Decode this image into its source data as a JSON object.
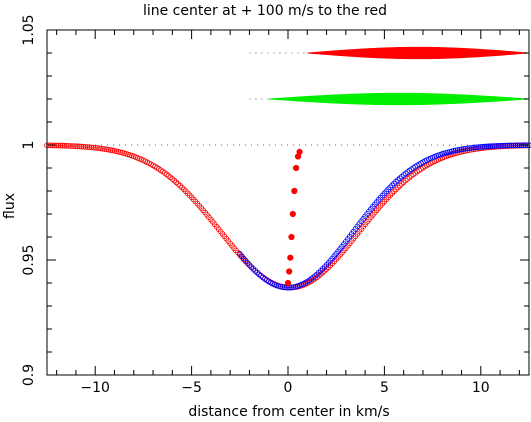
{
  "chart_data": {
    "type": "scatter",
    "title": "line center at + 100 m/s to the red",
    "xlabel": "distance from center in km/s",
    "ylabel": "flux",
    "xlim": [
      -12.5,
      12.5
    ],
    "ylim": [
      0.9,
      1.05
    ],
    "x_ticks": [
      -10,
      -5,
      0,
      5,
      10
    ],
    "x_tick_labels": [
      "−10",
      "−5",
      "0",
      "5",
      "10"
    ],
    "y_ticks": [
      0.9,
      0.95,
      1,
      1.05
    ],
    "y_tick_labels": [
      "0.9",
      "0.95",
      "1",
      "1.05"
    ],
    "continuum_level": 1.0,
    "colors": {
      "red": "#ff0000",
      "blue": "#0000ff",
      "green": "#00ee00",
      "dotted": "#666666"
    },
    "series": [
      {
        "color": "red",
        "marker": "open-circle",
        "model": "inverted gaussian",
        "center": 0.1,
        "depth": 0.062,
        "sigma": 3.6,
        "x_range": [
          -12.5,
          12.5
        ],
        "x_step": 0.1
      },
      {
        "color": "blue",
        "marker": "open-circle",
        "model": "inverted gaussian",
        "center": 0.0,
        "depth": 0.062,
        "sigma": 3.4,
        "x_range": [
          -2.5,
          12.5
        ],
        "x_step": 0.1
      },
      {
        "color": "red",
        "marker": "filled-dot",
        "note": "line bisector",
        "x": [
          0.0,
          0.06,
          0.12,
          0.18,
          0.25,
          0.33,
          0.42,
          0.52,
          0.6
        ],
        "y": [
          0.94,
          0.945,
          0.951,
          0.96,
          0.97,
          0.98,
          0.99,
          0.995,
          0.997
        ]
      }
    ],
    "reference_lines": [
      {
        "y": 1.0,
        "x_range": [
          -12.5,
          12.5
        ],
        "color": "dotted"
      },
      {
        "y": 1.02,
        "x_range": [
          -2.0,
          2.5
        ],
        "color": "dotted"
      },
      {
        "y": 1.04,
        "x_range": [
          -2.0,
          1.5
        ],
        "color": "dotted"
      }
    ],
    "difference_bands": [
      {
        "color": "green",
        "y": 1.02,
        "x_range": [
          -1.0,
          12.5
        ],
        "max_width": 0.0025
      },
      {
        "color": "red",
        "y": 1.04,
        "x_range": [
          1.0,
          12.5
        ],
        "max_width": 0.0025
      }
    ]
  }
}
